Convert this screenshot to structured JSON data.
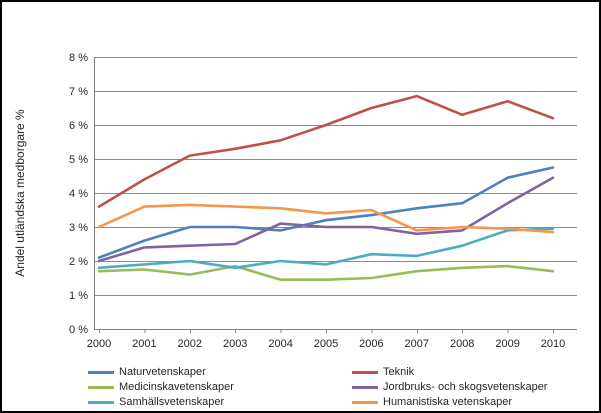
{
  "chart_data": {
    "type": "line",
    "title": "",
    "xlabel": "",
    "ylabel": "Andel utländska medborgare %",
    "x": [
      2000,
      2001,
      2002,
      2003,
      2004,
      2005,
      2006,
      2007,
      2008,
      2009,
      2010
    ],
    "ylim": [
      0,
      8
    ],
    "ytick_step": 1,
    "ytick_suffix": " %",
    "grid": true,
    "legend_position": "bottom",
    "axis_color": "#808080",
    "grid_color": "#8C8C8C",
    "series": [
      {
        "name": "Naturvetenskaper",
        "color": "#4F81BD",
        "values": [
          2.1,
          2.6,
          3.0,
          3.0,
          2.9,
          3.2,
          3.35,
          3.55,
          3.7,
          4.45,
          4.75
        ]
      },
      {
        "name": "Teknik",
        "color": "#C0504D",
        "values": [
          3.6,
          4.4,
          5.1,
          5.3,
          5.55,
          6.0,
          6.5,
          6.85,
          6.3,
          6.7,
          6.2
        ]
      },
      {
        "name": "Medicinskavetenskaper",
        "color": "#9BBB59",
        "values": [
          1.7,
          1.75,
          1.6,
          1.85,
          1.45,
          1.45,
          1.5,
          1.7,
          1.8,
          1.85,
          1.7
        ]
      },
      {
        "name": "Jordbruks- och skogsvetenskaper",
        "color": "#8064A2",
        "values": [
          2.0,
          2.4,
          2.45,
          2.5,
          3.1,
          3.0,
          3.0,
          2.8,
          2.9,
          3.7,
          4.45
        ]
      },
      {
        "name": "Samhällsvetenskaper",
        "color": "#4BACC6",
        "values": [
          1.8,
          1.9,
          2.0,
          1.8,
          2.0,
          1.9,
          2.2,
          2.15,
          2.45,
          2.9,
          2.95
        ]
      },
      {
        "name": "Humanistiska vetenskaper",
        "color": "#F79646",
        "values": [
          3.0,
          3.6,
          3.65,
          3.6,
          3.55,
          3.4,
          3.5,
          2.9,
          3.0,
          2.95,
          2.85
        ]
      }
    ],
    "legend_columns": [
      [
        0,
        2,
        4
      ],
      [
        1,
        3,
        5
      ]
    ]
  }
}
